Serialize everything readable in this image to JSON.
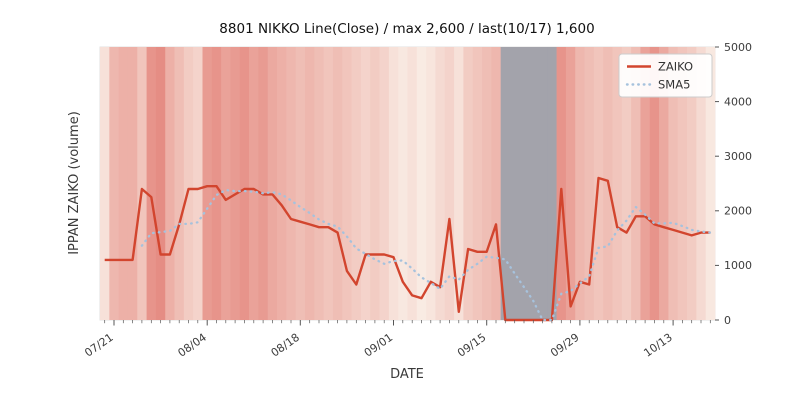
{
  "chart_data": {
    "type": "line",
    "title": "8801 NIKKO Line(Close) / max 2,600 / last(10/17) 1,600",
    "xlabel": "DATE",
    "ylabel": "IPPAN ZAIKO (volume)",
    "ylim": [
      0,
      5000
    ],
    "yticks": [
      0,
      1000,
      2000,
      3000,
      4000,
      5000
    ],
    "xticks": [
      "07/21",
      "08/04",
      "08/18",
      "09/01",
      "09/15",
      "09/29",
      "10/13"
    ],
    "grid": false,
    "legend_position": "upper right",
    "dates": [
      "07/18",
      "07/21",
      "07/22",
      "07/23",
      "07/24",
      "07/25",
      "07/28",
      "07/29",
      "07/30",
      "07/31",
      "08/01",
      "08/04",
      "08/05",
      "08/06",
      "08/07",
      "08/08",
      "08/11",
      "08/12",
      "08/13",
      "08/14",
      "08/15",
      "08/18",
      "08/19",
      "08/20",
      "08/21",
      "08/22",
      "08/25",
      "08/26",
      "08/27",
      "08/28",
      "08/29",
      "09/01",
      "09/02",
      "09/03",
      "09/04",
      "09/05",
      "09/08",
      "09/09",
      "09/10",
      "09/11",
      "09/12",
      "09/15",
      "09/16",
      "09/17",
      "09/18",
      "09/19",
      "09/22",
      "09/23",
      "09/24",
      "09/25",
      "09/26",
      "09/29",
      "09/30",
      "10/01",
      "10/02",
      "10/03",
      "10/06",
      "10/07",
      "10/08",
      "10/09",
      "10/10",
      "10/13",
      "10/14",
      "10/15",
      "10/16",
      "10/17"
    ],
    "series": [
      {
        "name": "ZAIKO",
        "style": "solid",
        "color": "#d2452e",
        "values": [
          1100,
          1100,
          1100,
          1100,
          2400,
          2250,
          1200,
          1200,
          1750,
          2400,
          2400,
          2450,
          2450,
          2200,
          2300,
          2400,
          2400,
          2300,
          2300,
          2100,
          1850,
          1800,
          1750,
          1700,
          1700,
          1600,
          900,
          650,
          1200,
          1200,
          1200,
          1150,
          700,
          450,
          400,
          700,
          600,
          1850,
          150,
          1300,
          1250,
          1250,
          1750,
          0,
          0,
          0,
          0,
          0,
          0,
          2400,
          250,
          700,
          650,
          2600,
          2550,
          1700,
          1600,
          1900,
          1900,
          1750,
          1700,
          1650,
          1600,
          1550,
          1600,
          1600
        ]
      },
      {
        "name": "SMA5",
        "style": "dotted",
        "color": "#a6c2dd",
        "derived": "5-period moving average of ZAIKO"
      }
    ],
    "background_bands": {
      "note": "per-day vertical shading; -1 = gray band (09/17 to 09/24), 0..1 = cream-to-red intensity",
      "gray_color": "#a3a3ab",
      "intensity": [
        0.15,
        0.45,
        0.5,
        0.5,
        0.35,
        0.7,
        0.75,
        0.5,
        0.4,
        0.3,
        0.25,
        0.65,
        0.7,
        0.6,
        0.65,
        0.7,
        0.6,
        0.65,
        0.55,
        0.5,
        0.45,
        0.4,
        0.45,
        0.4,
        0.35,
        0.4,
        0.35,
        0.3,
        0.25,
        0.3,
        0.25,
        0.15,
        0.1,
        0.15,
        0.08,
        0.12,
        0.2,
        0.25,
        0.15,
        0.3,
        0.35,
        0.4,
        0.45,
        -1,
        -1,
        -1,
        -1,
        -1,
        -1,
        0.7,
        0.6,
        0.45,
        0.4,
        0.35,
        0.4,
        0.35,
        0.3,
        0.4,
        0.6,
        0.7,
        0.55,
        0.4,
        0.35,
        0.3,
        0.2,
        0.1
      ]
    },
    "stats": {
      "max": "2,600",
      "last_date": "10/17",
      "last_value": "1,600"
    }
  },
  "legend": {
    "zaiko_label": "ZAIKO",
    "sma5_label": "SMA5"
  }
}
